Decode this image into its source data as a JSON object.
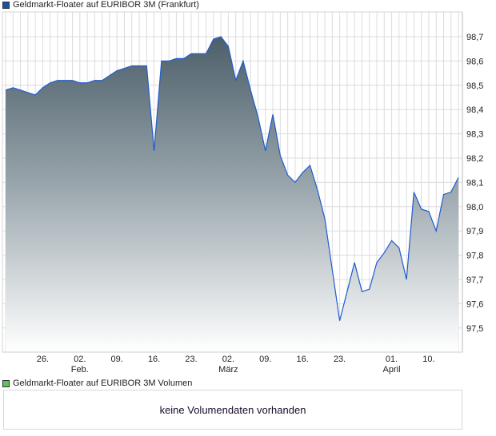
{
  "legend_main": {
    "label": "Geldmarkt-Floater auf EURIBOR 3M (Frankfurt)",
    "color": "#1a4fa8"
  },
  "legend_volume": {
    "label": "Geldmarkt-Floater auf EURIBOR 3M Volumen",
    "color": "#5cc45c"
  },
  "volume_message": "keine Volumendaten vorhanden",
  "chart_data": {
    "type": "area",
    "title": "Geldmarkt-Floater auf EURIBOR 3M (Frankfurt)",
    "xlabel": "",
    "ylabel": "",
    "ylim": [
      97.42,
      98.83
    ],
    "grid": true,
    "line_color": "#1f5bd0",
    "y_ticks": [
      "97,5",
      "97,6",
      "97,7",
      "97,8",
      "97,9",
      "98,0",
      "98,1",
      "98,2",
      "98,3",
      "98,4",
      "98,5",
      "98,6",
      "98,7"
    ],
    "y_tick_values": [
      97.5,
      97.6,
      97.7,
      97.8,
      97.9,
      98.0,
      98.1,
      98.2,
      98.3,
      98.4,
      98.5,
      98.6,
      98.7
    ],
    "x_ticks": [
      {
        "index": 5,
        "label": "26.",
        "sub": ""
      },
      {
        "index": 10,
        "label": "02.",
        "sub": "Feb."
      },
      {
        "index": 15,
        "label": "09.",
        "sub": ""
      },
      {
        "index": 20,
        "label": "16.",
        "sub": ""
      },
      {
        "index": 25,
        "label": "23.",
        "sub": ""
      },
      {
        "index": 30,
        "label": "02.",
        "sub": "März"
      },
      {
        "index": 35,
        "label": "09.",
        "sub": ""
      },
      {
        "index": 40,
        "label": "16.",
        "sub": ""
      },
      {
        "index": 45,
        "label": "23.",
        "sub": ""
      },
      {
        "index": 52,
        "label": "01.",
        "sub": "April"
      },
      {
        "index": 57,
        "label": "10.",
        "sub": ""
      }
    ],
    "values": [
      98.48,
      98.49,
      98.48,
      98.47,
      98.46,
      98.49,
      98.51,
      98.52,
      98.52,
      98.52,
      98.51,
      98.51,
      98.52,
      98.52,
      98.54,
      98.56,
      98.57,
      98.58,
      98.58,
      98.58,
      98.23,
      98.6,
      98.6,
      98.61,
      98.61,
      98.63,
      98.63,
      98.63,
      98.69,
      98.7,
      98.66,
      98.52,
      98.6,
      98.48,
      98.37,
      98.23,
      98.38,
      98.21,
      98.13,
      98.1,
      98.14,
      98.17,
      98.07,
      97.95,
      97.74,
      97.53,
      97.65,
      97.77,
      97.65,
      97.66,
      97.77,
      97.81,
      97.86,
      97.83,
      97.7,
      98.06,
      97.99,
      97.98,
      97.9,
      98.05,
      98.06,
      98.12
    ]
  }
}
